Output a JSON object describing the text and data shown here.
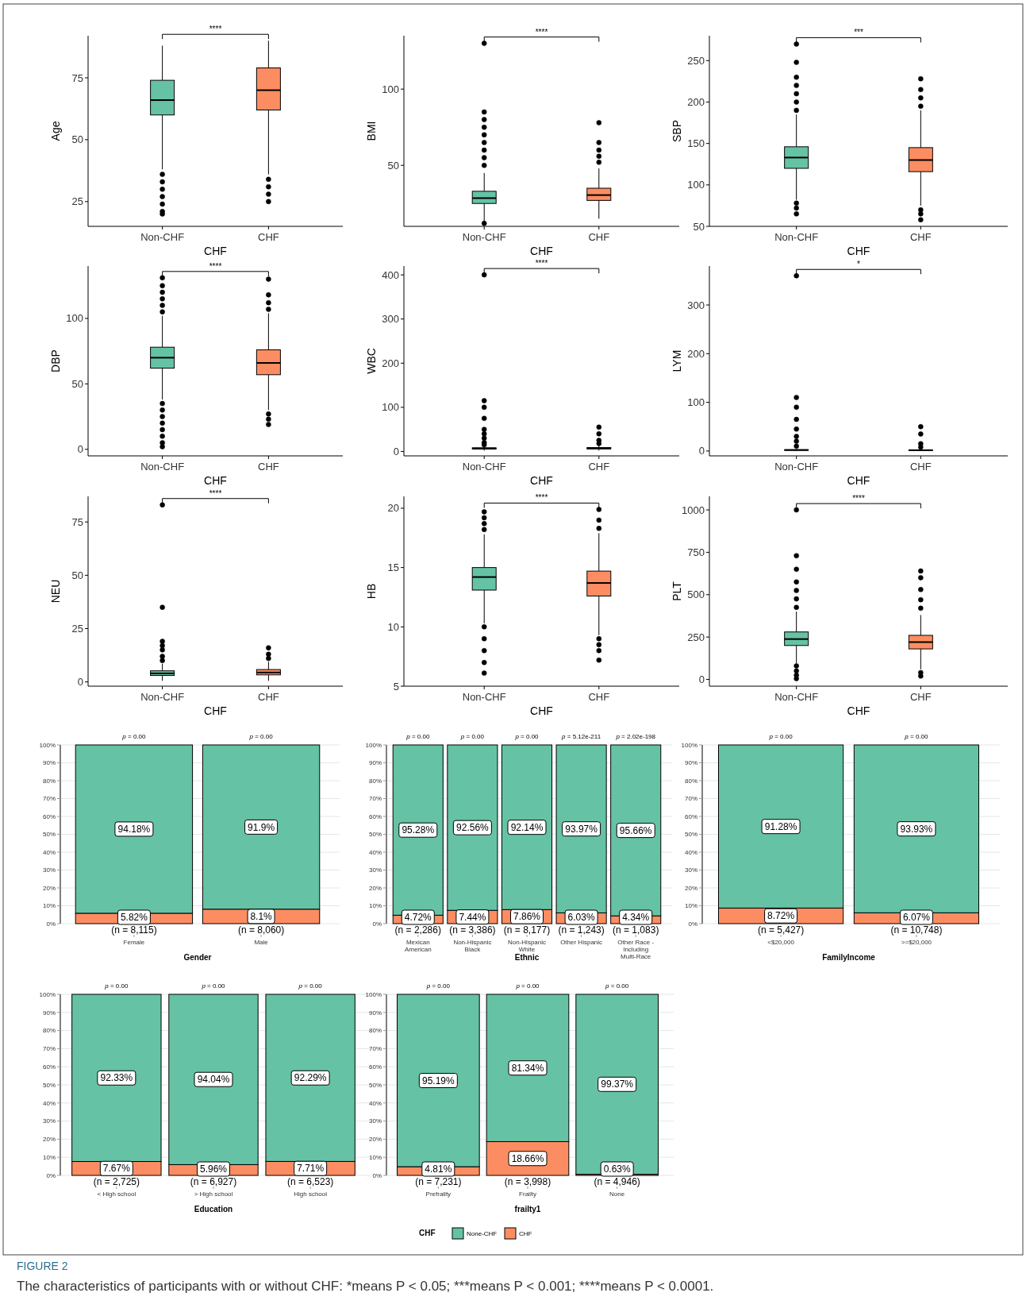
{
  "chart_data": [
    {
      "type": "box",
      "xlabel": "CHF",
      "ylabel": "Age",
      "categories": [
        "Non-CHF",
        "CHF"
      ],
      "colors": [
        "#66c2a5",
        "#fc8d62"
      ],
      "ylim": [
        15,
        92
      ],
      "yticks": [
        25,
        50,
        75
      ],
      "annotations": [
        "****"
      ],
      "boxes": [
        {
          "low": 38,
          "q1": 60,
          "median": 66,
          "q3": 74,
          "high": 88,
          "outliers": [
            36,
            33,
            30,
            27,
            24,
            21,
            20
          ]
        },
        {
          "low": 36,
          "q1": 62,
          "median": 70,
          "q3": 79,
          "high": 90,
          "outliers": [
            34,
            31,
            28,
            25
          ]
        }
      ]
    },
    {
      "type": "box",
      "xlabel": "CHF",
      "ylabel": "BMI",
      "categories": [
        "Non-CHF",
        "CHF"
      ],
      "colors": [
        "#66c2a5",
        "#fc8d62"
      ],
      "ylim": [
        10,
        135
      ],
      "yticks": [
        50,
        100
      ],
      "annotations": [
        "****"
      ],
      "boxes": [
        {
          "low": 13,
          "q1": 25,
          "median": 28.5,
          "q3": 33,
          "high": 45,
          "outliers": [
            12,
            50,
            55,
            60,
            65,
            70,
            75,
            80,
            85,
            130
          ]
        },
        {
          "low": 15,
          "q1": 27,
          "median": 30.5,
          "q3": 35,
          "high": 48,
          "outliers": [
            52,
            56,
            60,
            65,
            78
          ]
        }
      ]
    },
    {
      "type": "box",
      "xlabel": "CHF",
      "ylabel": "SBP",
      "categories": [
        "Non-CHF",
        "CHF"
      ],
      "colors": [
        "#66c2a5",
        "#fc8d62"
      ],
      "ylim": [
        50,
        280
      ],
      "yticks": [
        50,
        100,
        150,
        200,
        250
      ],
      "annotations": [
        "***"
      ],
      "boxes": [
        {
          "low": 82,
          "q1": 120,
          "median": 133,
          "q3": 146,
          "high": 185,
          "outliers": [
            78,
            72,
            65,
            190,
            200,
            210,
            220,
            230,
            248,
            270
          ]
        },
        {
          "low": 75,
          "q1": 116,
          "median": 130,
          "q3": 145,
          "high": 190,
          "outliers": [
            70,
            65,
            58,
            195,
            205,
            215,
            228
          ]
        }
      ]
    },
    {
      "type": "box",
      "xlabel": "CHF",
      "ylabel": "DBP",
      "categories": [
        "Non-CHF",
        "CHF"
      ],
      "colors": [
        "#66c2a5",
        "#fc8d62"
      ],
      "ylim": [
        -5,
        140
      ],
      "yticks": [
        0,
        50,
        100
      ],
      "annotations": [
        "****"
      ],
      "boxes": [
        {
          "low": 38,
          "q1": 62,
          "median": 70,
          "q3": 78,
          "high": 102,
          "outliers": [
            35,
            30,
            25,
            20,
            15,
            10,
            5,
            2,
            105,
            110,
            115,
            120,
            125,
            131
          ]
        },
        {
          "low": 30,
          "q1": 57,
          "median": 66,
          "q3": 76,
          "high": 104,
          "outliers": [
            27,
            23,
            19,
            107,
            112,
            118,
            130
          ]
        }
      ]
    },
    {
      "type": "box",
      "xlabel": "CHF",
      "ylabel": "WBC",
      "categories": [
        "Non-CHF",
        "CHF"
      ],
      "colors": [
        "#66c2a5",
        "#fc8d62"
      ],
      "ylim": [
        -10,
        420
      ],
      "yticks": [
        0,
        100,
        200,
        300,
        400
      ],
      "annotations": [
        "****"
      ],
      "boxes": [
        {
          "low": 2,
          "q1": 5.5,
          "median": 6.8,
          "q3": 8.2,
          "high": 12,
          "outliers": [
            15,
            20,
            30,
            40,
            50,
            75,
            100,
            115,
            400
          ]
        },
        {
          "low": 2,
          "q1": 5.8,
          "median": 7.2,
          "q3": 8.8,
          "high": 13,
          "outliers": [
            18,
            25,
            40,
            55
          ]
        }
      ]
    },
    {
      "type": "box",
      "xlabel": "CHF",
      "ylabel": "LYM",
      "categories": [
        "Non-CHF",
        "CHF"
      ],
      "colors": [
        "#66c2a5",
        "#fc8d62"
      ],
      "ylim": [
        -10,
        380
      ],
      "yticks": [
        0,
        100,
        200,
        300
      ],
      "annotations": [
        "*"
      ],
      "boxes": [
        {
          "low": 0.3,
          "q1": 1.5,
          "median": 2,
          "q3": 2.6,
          "high": 4,
          "outliers": [
            10,
            20,
            30,
            45,
            65,
            90,
            110,
            360
          ]
        },
        {
          "low": 0.2,
          "q1": 1.2,
          "median": 1.7,
          "q3": 2.2,
          "high": 3.7,
          "outliers": [
            8,
            15,
            35,
            50
          ]
        }
      ]
    },
    {
      "type": "box",
      "xlabel": "CHF",
      "ylabel": "NEU",
      "categories": [
        "Non-CHF",
        "CHF"
      ],
      "colors": [
        "#66c2a5",
        "#fc8d62"
      ],
      "ylim": [
        -2,
        87
      ],
      "yticks": [
        0,
        25,
        50,
        75
      ],
      "annotations": [
        "****"
      ],
      "boxes": [
        {
          "low": 0.5,
          "q1": 3,
          "median": 4,
          "q3": 5.2,
          "high": 8.5,
          "outliers": [
            10,
            12,
            15,
            17,
            19,
            35,
            83
          ]
        },
        {
          "low": 0.5,
          "q1": 3.3,
          "median": 4.4,
          "q3": 5.8,
          "high": 9.5,
          "outliers": [
            11,
            13,
            16
          ]
        }
      ]
    },
    {
      "type": "box",
      "xlabel": "CHF",
      "ylabel": "HB",
      "categories": [
        "Non-CHF",
        "CHF"
      ],
      "colors": [
        "#66c2a5",
        "#fc8d62"
      ],
      "ylim": [
        5,
        21
      ],
      "yticks": [
        5,
        10,
        15,
        20
      ],
      "annotations": [
        "****"
      ],
      "boxes": [
        {
          "low": 10.3,
          "q1": 13.1,
          "median": 14.2,
          "q3": 15,
          "high": 17.8,
          "outliers": [
            10,
            9,
            8,
            7,
            6.1,
            18.2,
            18.7,
            19.2,
            19.7
          ]
        },
        {
          "low": 9.3,
          "q1": 12.6,
          "median": 13.7,
          "q3": 14.7,
          "high": 17.9,
          "outliers": [
            9,
            8.5,
            8,
            7.2,
            18.3,
            19,
            19.9
          ]
        }
      ]
    },
    {
      "type": "box",
      "xlabel": "CHF",
      "ylabel": "PLT",
      "categories": [
        "Non-CHF",
        "CHF"
      ],
      "colors": [
        "#66c2a5",
        "#fc8d62"
      ],
      "ylim": [
        -40,
        1080
      ],
      "yticks": [
        0,
        250,
        500,
        750,
        1000
      ],
      "annotations": [
        "****"
      ],
      "boxes": [
        {
          "low": 95,
          "q1": 200,
          "median": 238,
          "q3": 280,
          "high": 400,
          "outliers": [
            80,
            50,
            25,
            5,
            425,
            475,
            525,
            575,
            650,
            730,
            1000
          ]
        },
        {
          "low": 60,
          "q1": 180,
          "median": 220,
          "q3": 260,
          "high": 380,
          "outliers": [
            40,
            20,
            420,
            470,
            530,
            600,
            640
          ]
        }
      ]
    },
    {
      "type": "bar",
      "stacked": true,
      "xlabel": "Gender",
      "categories": [
        "Female",
        "Male"
      ],
      "ylim": [
        0,
        100
      ],
      "grid": "y",
      "yticks": [
        {
          "value": 0,
          "label": "0%"
        },
        {
          "value": 10,
          "label": "10%"
        },
        {
          "value": 20,
          "label": "20%"
        },
        {
          "value": 30,
          "label": "30%"
        },
        {
          "value": 40,
          "label": "40%"
        },
        {
          "value": 50,
          "label": "50%"
        },
        {
          "value": 60,
          "label": "60%"
        },
        {
          "value": 70,
          "label": "70%"
        },
        {
          "value": 80,
          "label": "80%"
        },
        {
          "value": 90,
          "label": "90%"
        },
        {
          "value": 100,
          "label": "100%"
        }
      ],
      "series": [
        {
          "color": "#fc8d62",
          "values": [
            5.82,
            8.1
          ],
          "value_labels": [
            "5.82%",
            "8.1%"
          ]
        },
        {
          "color": "#66c2a5",
          "values": [
            94.18,
            91.9
          ],
          "value_labels": [
            "94.18%",
            "91.9%"
          ]
        }
      ],
      "annotations": [
        {
          "text": "p = 0.00",
          "x": "Female",
          "y": 100
        },
        {
          "text": "p = 0.00",
          "x": "Male",
          "y": 100
        },
        {
          "text": "(n = 8,115)",
          "x": "Female",
          "y": 0
        },
        {
          "text": "(n = 8,060)",
          "x": "Male",
          "y": 0
        }
      ]
    },
    {
      "type": "bar",
      "stacked": true,
      "xlabel": "Ethnic",
      "categories": [
        "Mexican American",
        "Non-Hispanic Black",
        "Non-Hispanic White",
        "Other Hispanic",
        "Other Race - Including Multi-Race"
      ],
      "ylim": [
        0,
        100
      ],
      "grid": "y",
      "yticks": [
        {
          "value": 0,
          "label": "0%"
        },
        {
          "value": 10,
          "label": "10%"
        },
        {
          "value": 20,
          "label": "20%"
        },
        {
          "value": 30,
          "label": "30%"
        },
        {
          "value": 40,
          "label": "40%"
        },
        {
          "value": 50,
          "label": "50%"
        },
        {
          "value": 60,
          "label": "60%"
        },
        {
          "value": 70,
          "label": "70%"
        },
        {
          "value": 80,
          "label": "80%"
        },
        {
          "value": 90,
          "label": "90%"
        },
        {
          "value": 100,
          "label": "100%"
        }
      ],
      "series": [
        {
          "color": "#fc8d62",
          "values": [
            4.72,
            7.44,
            7.86,
            6.03,
            4.34
          ],
          "value_labels": [
            "4.72%",
            "7.44%",
            "7.86%",
            "6.03%",
            "4.34%"
          ]
        },
        {
          "color": "#66c2a5",
          "values": [
            95.28,
            92.56,
            92.14,
            93.97,
            95.66
          ],
          "value_labels": [
            "95.28%",
            "92.56%",
            "92.14%",
            "93.97%",
            "95.66%"
          ]
        }
      ],
      "annotations": [
        {
          "text": "p = 0.00",
          "x": "Mexican American",
          "y": 100
        },
        {
          "text": "p = 0.00",
          "x": "Non-Hispanic Black",
          "y": 100
        },
        {
          "text": "p = 0.00",
          "x": "Non-Hispanic White",
          "y": 100
        },
        {
          "text": "p = 5.12e-211",
          "x": "Other Hispanic",
          "y": 100
        },
        {
          "text": "p = 2.02e-198",
          "x": "Other Race - Including Multi-Race",
          "y": 100
        },
        {
          "text": "(n = 2,286)",
          "x": "Mexican American",
          "y": 0
        },
        {
          "text": "(n = 3,386)",
          "x": "Non-Hispanic Black",
          "y": 0
        },
        {
          "text": "(n = 8,177)",
          "x": "Non-Hispanic White",
          "y": 0
        },
        {
          "text": "(n = 1,243)",
          "x": "Other Hispanic",
          "y": 0
        },
        {
          "text": "(n = 1,083)",
          "x": "Other Race - Including Multi-Race",
          "y": 0
        }
      ]
    },
    {
      "type": "bar",
      "stacked": true,
      "xlabel": "FamilyIncome",
      "categories": [
        "<$20,000",
        ">=$20,000"
      ],
      "ylim": [
        0,
        100
      ],
      "grid": "y",
      "yticks": [
        {
          "value": 0,
          "label": "0%"
        },
        {
          "value": 10,
          "label": "10%"
        },
        {
          "value": 20,
          "label": "20%"
        },
        {
          "value": 30,
          "label": "30%"
        },
        {
          "value": 40,
          "label": "40%"
        },
        {
          "value": 50,
          "label": "50%"
        },
        {
          "value": 60,
          "label": "60%"
        },
        {
          "value": 70,
          "label": "70%"
        },
        {
          "value": 80,
          "label": "80%"
        },
        {
          "value": 90,
          "label": "90%"
        },
        {
          "value": 100,
          "label": "100%"
        }
      ],
      "series": [
        {
          "color": "#fc8d62",
          "values": [
            8.72,
            6.07
          ],
          "value_labels": [
            "8.72%",
            "6.07%"
          ]
        },
        {
          "color": "#66c2a5",
          "values": [
            91.28,
            93.93
          ],
          "value_labels": [
            "91.28%",
            "93.93%"
          ]
        }
      ],
      "annotations": [
        {
          "text": "p = 0.00",
          "x": "<$20,000",
          "y": 100
        },
        {
          "text": "p = 0.00",
          "x": ">=$20,000",
          "y": 100
        },
        {
          "text": "(n = 5,427)",
          "x": "<$20,000",
          "y": 0
        },
        {
          "text": "(n = 10,748)",
          "x": ">=$20,000",
          "y": 0
        }
      ]
    },
    {
      "type": "bar",
      "stacked": true,
      "xlabel": "Education",
      "categories": [
        "< High school",
        "> High school",
        "High school"
      ],
      "ylim": [
        0,
        100
      ],
      "grid": "y",
      "yticks": [
        {
          "value": 0,
          "label": "0%"
        },
        {
          "value": 10,
          "label": "10%"
        },
        {
          "value": 20,
          "label": "20%"
        },
        {
          "value": 30,
          "label": "30%"
        },
        {
          "value": 40,
          "label": "40%"
        },
        {
          "value": 50,
          "label": "50%"
        },
        {
          "value": 60,
          "label": "60%"
        },
        {
          "value": 70,
          "label": "70%"
        },
        {
          "value": 80,
          "label": "80%"
        },
        {
          "value": 90,
          "label": "90%"
        },
        {
          "value": 100,
          "label": "100%"
        }
      ],
      "series": [
        {
          "color": "#fc8d62",
          "values": [
            7.67,
            5.96,
            7.71
          ],
          "value_labels": [
            "7.67%",
            "5.96%",
            "7.71%"
          ]
        },
        {
          "color": "#66c2a5",
          "values": [
            92.33,
            94.04,
            92.29
          ],
          "value_labels": [
            "92.33%",
            "94.04%",
            "92.29%"
          ]
        }
      ],
      "annotations": [
        {
          "text": "p = 0.00",
          "x": "< High school",
          "y": 100
        },
        {
          "text": "p = 0.00",
          "x": "> High school",
          "y": 100
        },
        {
          "text": "p = 0.00",
          "x": "High school",
          "y": 100
        },
        {
          "text": "(n = 2,725)",
          "x": "< High school",
          "y": 0
        },
        {
          "text": "(n = 6,927)",
          "x": "> High school",
          "y": 0
        },
        {
          "text": "(n = 6,523)",
          "x": "High school",
          "y": 0
        }
      ]
    },
    {
      "type": "bar",
      "stacked": true,
      "xlabel": "frailty1",
      "categories": [
        "Prefrailty",
        "Frailty",
        "None"
      ],
      "ylim": [
        0,
        100
      ],
      "grid": "y",
      "legend": "bottom",
      "legend_title": "CHF",
      "yticks": [
        {
          "value": 0,
          "label": "0%"
        },
        {
          "value": 10,
          "label": "10%"
        },
        {
          "value": 20,
          "label": "20%"
        },
        {
          "value": 30,
          "label": "30%"
        },
        {
          "value": 40,
          "label": "40%"
        },
        {
          "value": 50,
          "label": "50%"
        },
        {
          "value": 60,
          "label": "60%"
        },
        {
          "value": 70,
          "label": "70%"
        },
        {
          "value": 80,
          "label": "80%"
        },
        {
          "value": 90,
          "label": "90%"
        },
        {
          "value": 100,
          "label": "100%"
        }
      ],
      "series": [
        {
          "name": "CHF",
          "color": "#fc8d62",
          "values": [
            4.81,
            18.66,
            0.63
          ],
          "value_labels": [
            "4.81%",
            "18.66%",
            "0.63%"
          ]
        },
        {
          "name": "None-CHF",
          "color": "#66c2a5",
          "values": [
            95.19,
            81.34,
            99.37
          ],
          "value_labels": [
            "95.19%",
            "81.34%",
            "99.37%"
          ]
        }
      ],
      "annotations": [
        {
          "text": "p = 0.00",
          "x": "Prefrailty",
          "y": 100
        },
        {
          "text": "p = 0.00",
          "x": "Frailty",
          "y": 100
        },
        {
          "text": "p = 0.00",
          "x": "None",
          "y": 100
        },
        {
          "text": "(n = 7,231)",
          "x": "Prefrailty",
          "y": 0
        },
        {
          "text": "(n = 3,998)",
          "x": "Frailty",
          "y": 0
        },
        {
          "text": "(n = 4,946)",
          "x": "None",
          "y": 0
        },
        "FIGURE 2",
        "The characteristics of participants with or without CHF: *means P < 0.05; ***means P < 0.001; ****means P < 0.0001."
      ]
    }
  ]
}
